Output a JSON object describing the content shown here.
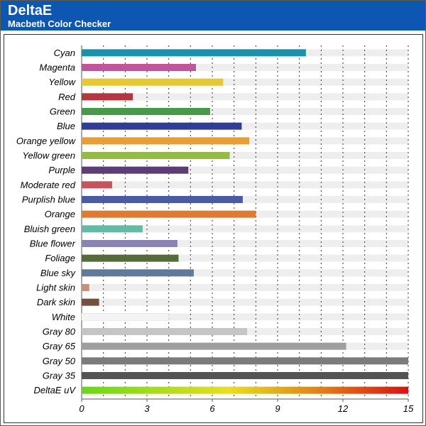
{
  "header": {
    "title": "DeltaE",
    "subtitle": "Macbeth Color Checker"
  },
  "chart_data": {
    "type": "bar",
    "orientation": "horizontal",
    "title": "DeltaE",
    "subtitle": "Macbeth Color Checker",
    "xlabel": "",
    "ylabel": "",
    "xlim": [
      0,
      15
    ],
    "xticks": [
      "0",
      "3",
      "6",
      "9",
      "12",
      "15"
    ],
    "grid": true,
    "categories": [
      "Cyan",
      "Magenta",
      "Yellow",
      "Red",
      "Green",
      "Blue",
      "Orange yellow",
      "Yellow green",
      "Purple",
      "Moderate red",
      "Purplish blue",
      "Orange",
      "Bluish green",
      "Blue flower",
      "Foliage",
      "Blue sky",
      "Light skin",
      "Dark skin",
      "White",
      "Gray 80",
      "Gray 65",
      "Gray 50",
      "Gray 35",
      "DeltaE uV"
    ],
    "values": [
      10.3,
      5.25,
      6.5,
      2.35,
      5.9,
      7.35,
      7.7,
      6.8,
      4.9,
      1.4,
      7.4,
      8.0,
      2.8,
      4.4,
      4.45,
      5.15,
      0.35,
      0.8,
      4.0,
      7.6,
      12.15,
      15.0,
      15.0,
      15.0
    ],
    "colors": [
      "#1794ab",
      "#c1559b",
      "#e6c832",
      "#b3373e",
      "#469a4a",
      "#2f3d95",
      "#e6a035",
      "#94bb44",
      "#5e3c75",
      "#c5545f",
      "#4b5aa6",
      "#de7b30",
      "#65b9a7",
      "#8a83b8",
      "#556b3a",
      "#627a9a",
      "#c4917e",
      "#72513f",
      "#f4f4f4",
      "#c5c5c5",
      "#9f9f9f",
      "#7b7b7b",
      "#545454",
      "gradient"
    ]
  }
}
